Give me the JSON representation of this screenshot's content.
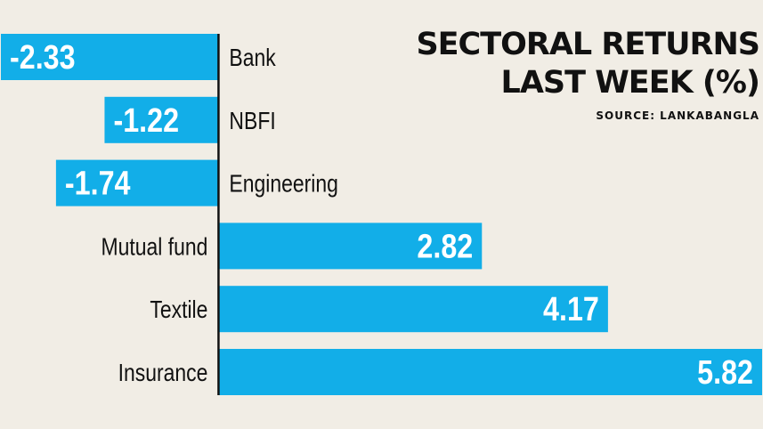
{
  "chart_data": {
    "type": "bar",
    "orientation": "horizontal",
    "title": "SECTORAL RETURNS",
    "subtitle": "LAST WEEK (%)",
    "source": "SOURCE: LANKABANGLA",
    "categories": [
      "Bank",
      "NBFI",
      "Engineering",
      "Mutual fund",
      "Textile",
      "Insurance"
    ],
    "values": [
      -2.33,
      -1.22,
      -1.74,
      2.82,
      4.17,
      5.82
    ],
    "data_labels": [
      "-2.33",
      "-1.22",
      "-1.74",
      "2.82",
      "4.17",
      "5.82"
    ],
    "bar_color": "#12aee8",
    "grid": false,
    "legend": "none"
  }
}
